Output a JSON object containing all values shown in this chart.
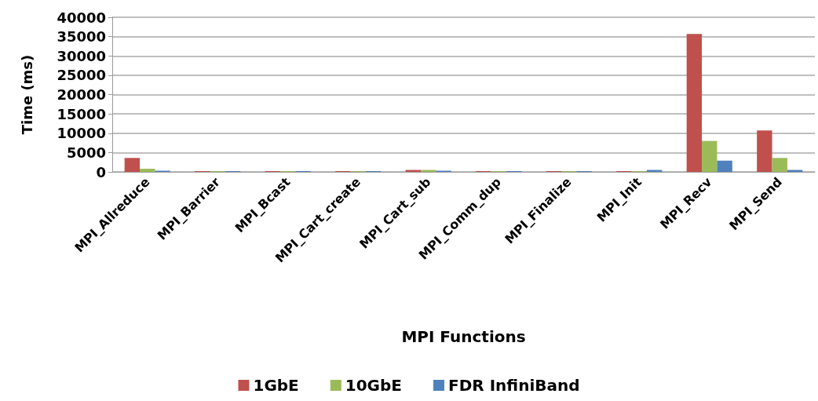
{
  "chart_data": {
    "type": "bar",
    "xlabel": "MPI Functions",
    "ylabel": "Time (ms)",
    "categories": [
      "MPI_Allreduce",
      "MPI_Barrier",
      "MPI_Bcast",
      "MPI_Cart_create",
      "MPI_Cart_sub",
      "MPI_Comm_dup",
      "MPI_Finalize",
      "MPI_Init",
      "MPI_Recv",
      "MPI_Send"
    ],
    "series": [
      {
        "name": "1GbE",
        "color": "#c0504d",
        "values": [
          3600,
          200,
          200,
          200,
          500,
          200,
          200,
          200,
          35700,
          10700
        ]
      },
      {
        "name": "10GbE",
        "color": "#9bbb59",
        "values": [
          800,
          200,
          200,
          200,
          500,
          200,
          200,
          200,
          8000,
          3600
        ]
      },
      {
        "name": "FDR InfiniBand",
        "color": "#4f81bd",
        "values": [
          300,
          200,
          200,
          200,
          300,
          200,
          200,
          500,
          2900,
          500
        ]
      }
    ],
    "ylim": [
      0,
      40000
    ],
    "yticks": [
      0,
      5000,
      10000,
      15000,
      20000,
      25000,
      30000,
      35000,
      40000
    ],
    "grid": "y",
    "legend": "bottom"
  }
}
